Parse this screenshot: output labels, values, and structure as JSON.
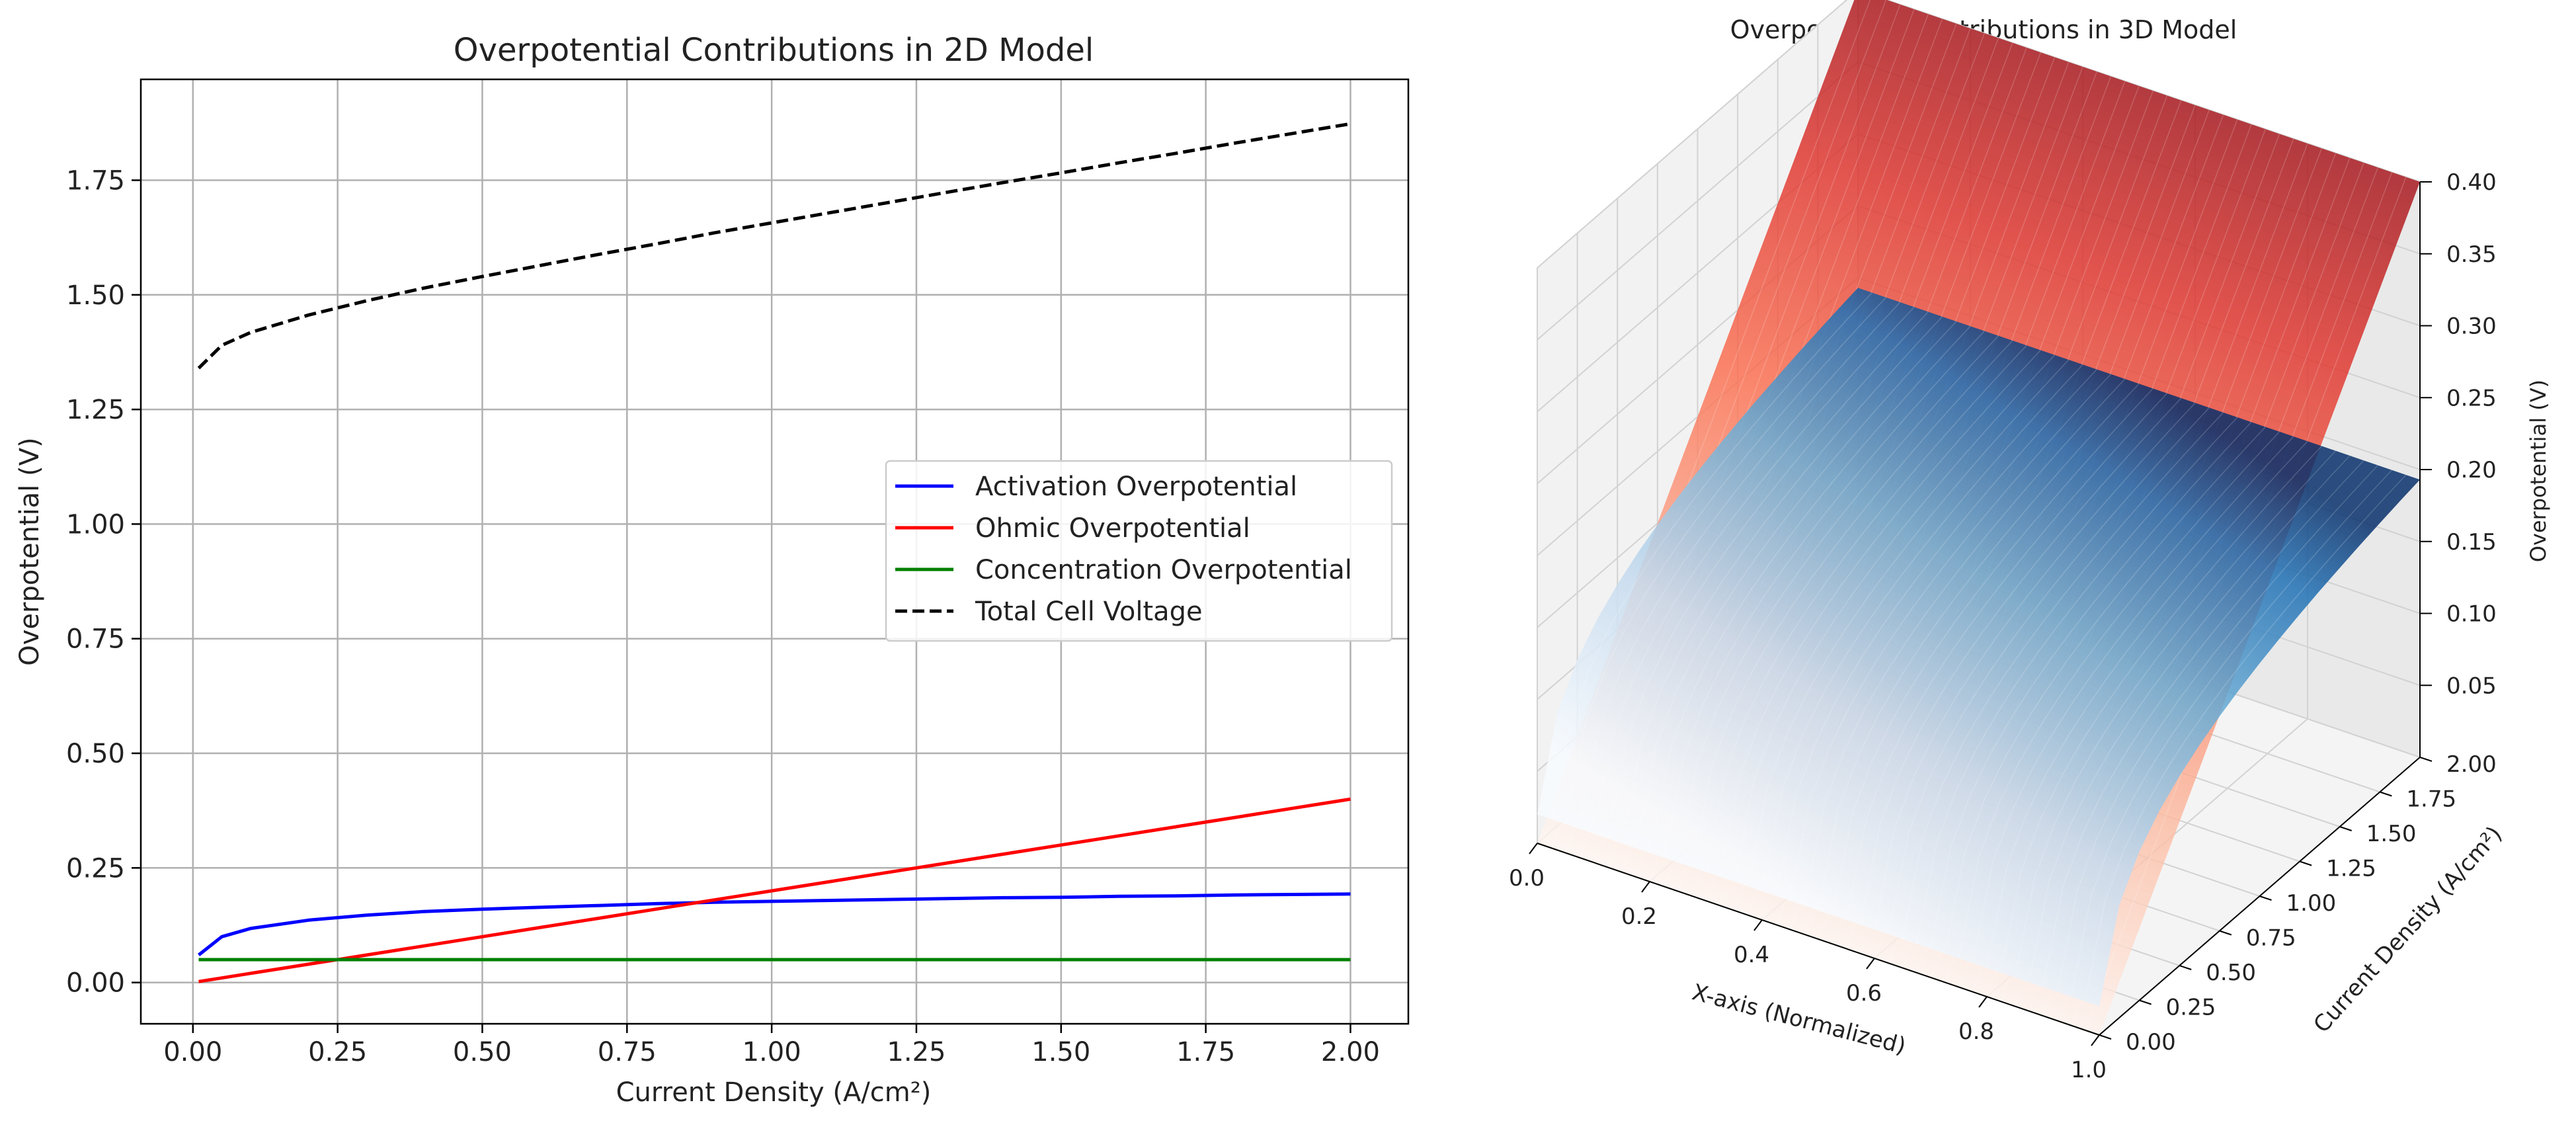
{
  "chart_data": [
    {
      "type": "line",
      "title": "Overpotential Contributions in 2D Model",
      "xlabel": "Current Density (A/cm²)",
      "ylabel": "Overpotential (V)",
      "xlim": [
        -0.09,
        2.1
      ],
      "ylim": [
        -0.09,
        1.97
      ],
      "grid": true,
      "xticks": [
        0.0,
        0.25,
        0.5,
        0.75,
        1.0,
        1.25,
        1.5,
        1.75,
        2.0
      ],
      "xtick_labels": [
        "0.00",
        "0.25",
        "0.50",
        "0.75",
        "1.00",
        "1.25",
        "1.50",
        "1.75",
        "2.00"
      ],
      "yticks": [
        0.0,
        0.25,
        0.5,
        0.75,
        1.0,
        1.25,
        1.5,
        1.75
      ],
      "ytick_labels": [
        "0.00",
        "0.25",
        "0.50",
        "0.75",
        "1.00",
        "1.25",
        "1.50",
        "1.75"
      ],
      "legend_position": "center-right",
      "x": [
        0.01,
        0.05,
        0.1,
        0.2,
        0.3,
        0.4,
        0.5,
        0.6,
        0.7,
        0.8,
        0.9,
        1.0,
        1.1,
        1.2,
        1.3,
        1.4,
        1.5,
        1.6,
        1.7,
        1.8,
        1.9,
        2.0
      ],
      "series": [
        {
          "name": "Activation Overpotential",
          "color": "#0000ff",
          "dash": "solid",
          "values": [
            0.06,
            0.1,
            0.118,
            0.136,
            0.147,
            0.155,
            0.16,
            0.164,
            0.168,
            0.172,
            0.175,
            0.177,
            0.179,
            0.181,
            0.183,
            0.185,
            0.186,
            0.188,
            0.189,
            0.191,
            0.192,
            0.193
          ]
        },
        {
          "name": "Ohmic Overpotential",
          "color": "#ff0000",
          "dash": "solid",
          "values": [
            0.002,
            0.01,
            0.02,
            0.04,
            0.06,
            0.08,
            0.1,
            0.12,
            0.14,
            0.16,
            0.18,
            0.2,
            0.22,
            0.24,
            0.26,
            0.28,
            0.3,
            0.32,
            0.34,
            0.36,
            0.38,
            0.4
          ]
        },
        {
          "name": "Concentration Overpotential",
          "color": "#008000",
          "dash": "solid",
          "values": [
            0.05,
            0.05,
            0.05,
            0.05,
            0.05,
            0.05,
            0.05,
            0.05,
            0.05,
            0.05,
            0.05,
            0.05,
            0.05,
            0.05,
            0.05,
            0.05,
            0.05,
            0.05,
            0.05,
            0.05,
            0.05,
            0.05
          ]
        },
        {
          "name": "Total Cell Voltage",
          "color": "#000000",
          "dash": "dashed",
          "values": [
            1.34,
            1.39,
            1.418,
            1.456,
            1.487,
            1.515,
            1.54,
            1.564,
            1.588,
            1.611,
            1.635,
            1.657,
            1.679,
            1.701,
            1.723,
            1.745,
            1.766,
            1.788,
            1.809,
            1.831,
            1.852,
            1.873
          ]
        }
      ]
    },
    {
      "type": "surface3d",
      "title": "Overpotential Contributions in 3D Model",
      "xlabel": "X-axis (Normalized)",
      "ylabel": "Current Density (A/cm²)",
      "zlabel": "Overpotential (V)",
      "xlim": [
        0.0,
        1.0
      ],
      "ylim": [
        0.0,
        2.0
      ],
      "zlim": [
        0.0,
        0.4
      ],
      "xticks": [
        0.0,
        0.2,
        0.4,
        0.6,
        0.8,
        1.0
      ],
      "xtick_labels": [
        "0.0",
        "0.2",
        "0.4",
        "0.6",
        "0.8",
        "1.0"
      ],
      "yticks": [
        0.0,
        0.25,
        0.5,
        0.75,
        1.0,
        1.25,
        1.5,
        1.75,
        2.0
      ],
      "ytick_labels": [
        "0.00",
        "0.25",
        "0.50",
        "0.75",
        "1.00",
        "1.25",
        "1.50",
        "1.75",
        "2.00"
      ],
      "zticks": [
        0.05,
        0.1,
        0.15,
        0.2,
        0.25,
        0.3,
        0.35,
        0.4
      ],
      "ztick_labels": [
        "0.05",
        "0.10",
        "0.15",
        "0.20",
        "0.25",
        "0.30",
        "0.35",
        "0.40"
      ],
      "surfaces": [
        {
          "name": "Ohmic Overpotential",
          "colormap": "Reds",
          "low_color": "#fff5f0",
          "high_color": "#a50f15",
          "formula": "0.2 * current_density",
          "z_min": 0.0,
          "z_max": 0.4
        },
        {
          "name": "Activation Overpotential",
          "colormap": "Blues",
          "low_color": "#f7fbff",
          "high_color": "#08306b",
          "formula": "approx. log-shaped in current density",
          "z_min": 0.02,
          "z_max": 0.193
        }
      ]
    }
  ]
}
